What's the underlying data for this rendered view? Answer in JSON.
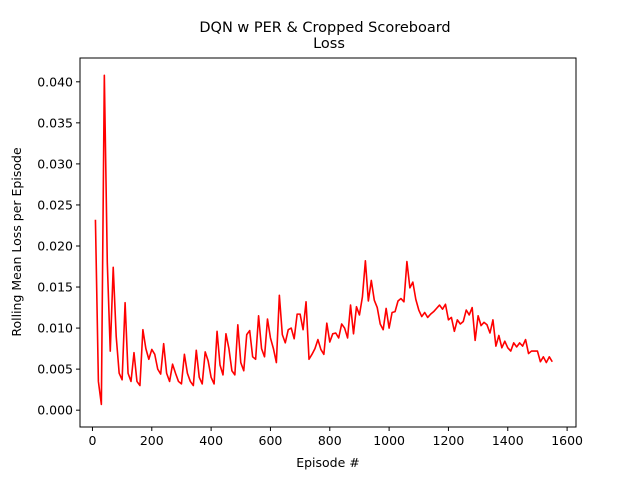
{
  "chart_data": {
    "type": "line",
    "title": "DQN w PER & Cropped Scoreboard",
    "subtitle": "Loss",
    "xlabel": "Episode #",
    "ylabel": "Rolling Mean Loss per Episode",
    "xlim": [
      -42,
      1630
    ],
    "ylim": [
      -0.00205,
      0.0429
    ],
    "x_ticks": [
      0,
      200,
      400,
      600,
      800,
      1000,
      1200,
      1400,
      1600
    ],
    "x_tick_labels": [
      "0",
      "200",
      "400",
      "600",
      "800",
      "1000",
      "1200",
      "1400",
      "1600"
    ],
    "y_ticks": [
      0.0,
      0.005,
      0.01,
      0.015,
      0.02,
      0.025,
      0.03,
      0.035,
      0.04
    ],
    "y_tick_labels": [
      "0.000",
      "0.005",
      "0.010",
      "0.015",
      "0.020",
      "0.025",
      "0.030",
      "0.035",
      "0.040"
    ],
    "grid": false,
    "colors": {
      "line": "#ff0000"
    },
    "series": [
      {
        "x": [
          10,
          20,
          30,
          40,
          50,
          60,
          70,
          80,
          90,
          100,
          110,
          120,
          130,
          140,
          150,
          160,
          170,
          180,
          190,
          200,
          210,
          220,
          230,
          240,
          250,
          260,
          270,
          280,
          290,
          300,
          310,
          320,
          330,
          340,
          350,
          360,
          370,
          380,
          390,
          400,
          410,
          420,
          430,
          440,
          450,
          460,
          470,
          480,
          490,
          500,
          510,
          520,
          530,
          540,
          550,
          560,
          570,
          580,
          590,
          600,
          610,
          620,
          630,
          640,
          650,
          660,
          670,
          680,
          690,
          700,
          710,
          720,
          730,
          740,
          750,
          760,
          770,
          780,
          790,
          800,
          810,
          820,
          830,
          840,
          850,
          860,
          870,
          880,
          890,
          900,
          910,
          920,
          930,
          940,
          950,
          960,
          970,
          980,
          990,
          1000,
          1010,
          1020,
          1030,
          1040,
          1050,
          1060,
          1070,
          1080,
          1090,
          1100,
          1110,
          1120,
          1130,
          1140,
          1150,
          1160,
          1170,
          1180,
          1190,
          1200,
          1210,
          1220,
          1230,
          1240,
          1250,
          1260,
          1270,
          1280,
          1290,
          1300,
          1310,
          1320,
          1330,
          1340,
          1350,
          1360,
          1370,
          1380,
          1390,
          1400,
          1410,
          1420,
          1430,
          1440,
          1450,
          1460,
          1470,
          1480,
          1490,
          1500,
          1510,
          1520,
          1530,
          1540,
          1550
        ],
        "values": [
          0.0232,
          0.0035,
          0.0007,
          0.0408,
          0.018,
          0.0072,
          0.0174,
          0.009,
          0.0045,
          0.0037,
          0.0131,
          0.0045,
          0.0035,
          0.007,
          0.0035,
          0.003,
          0.0098,
          0.0075,
          0.0062,
          0.0074,
          0.0068,
          0.005,
          0.0044,
          0.0081,
          0.0045,
          0.0035,
          0.0056,
          0.0045,
          0.0035,
          0.0032,
          0.0068,
          0.0045,
          0.0035,
          0.003,
          0.0073,
          0.004,
          0.0032,
          0.0071,
          0.006,
          0.004,
          0.0032,
          0.0096,
          0.0055,
          0.0043,
          0.0093,
          0.0075,
          0.0048,
          0.0043,
          0.0104,
          0.0058,
          0.0048,
          0.0092,
          0.0097,
          0.0065,
          0.0062,
          0.0115,
          0.0075,
          0.0065,
          0.0111,
          0.0088,
          0.0075,
          0.0058,
          0.014,
          0.0092,
          0.0082,
          0.0098,
          0.01,
          0.0087,
          0.0117,
          0.0117,
          0.0098,
          0.0132,
          0.0062,
          0.0068,
          0.0075,
          0.0086,
          0.0074,
          0.0068,
          0.0106,
          0.0083,
          0.0093,
          0.0094,
          0.0088,
          0.0105,
          0.01,
          0.0088,
          0.0128,
          0.0093,
          0.0126,
          0.0116,
          0.0138,
          0.0182,
          0.0133,
          0.0158,
          0.0134,
          0.0125,
          0.0105,
          0.0098,
          0.0124,
          0.01,
          0.0119,
          0.012,
          0.0133,
          0.0136,
          0.0132,
          0.0181,
          0.0149,
          0.0156,
          0.0135,
          0.0122,
          0.0114,
          0.0119,
          0.0113,
          0.0117,
          0.012,
          0.0124,
          0.0128,
          0.0123,
          0.0129,
          0.011,
          0.0113,
          0.0096,
          0.011,
          0.0105,
          0.0108,
          0.0122,
          0.0116,
          0.0125,
          0.0085,
          0.0115,
          0.0103,
          0.0107,
          0.0104,
          0.0094,
          0.011,
          0.0078,
          0.0091,
          0.0076,
          0.0084,
          0.0076,
          0.0072,
          0.0082,
          0.0077,
          0.0082,
          0.0078,
          0.0086,
          0.0069,
          0.0072,
          0.0072,
          0.0072,
          0.0059,
          0.0065,
          0.0058,
          0.0065,
          0.0059
        ]
      }
    ]
  }
}
